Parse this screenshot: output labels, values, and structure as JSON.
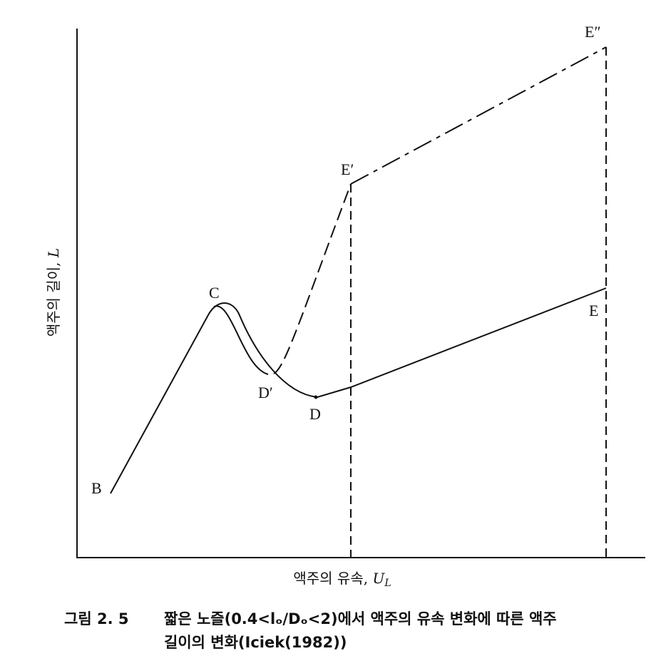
{
  "points": {
    "B": "B",
    "C": "C",
    "D": "D",
    "Dp": "D′",
    "E": "E",
    "Ep": "E′",
    "Epp": "E″"
  },
  "y_axis": {
    "text": "액주의 길이, ",
    "var": "L"
  },
  "x_axis": {
    "text": "액주의 유속, ",
    "var": "U",
    "sub": "L"
  },
  "caption": {
    "number": "그림 2. 5",
    "lines": [
      "짧은 노즐(0.4<lₒ/Dₒ<2)에서 액주의 유속 변화에 따른 액주",
      "길이의 변화(Iciek(1982))"
    ]
  }
}
